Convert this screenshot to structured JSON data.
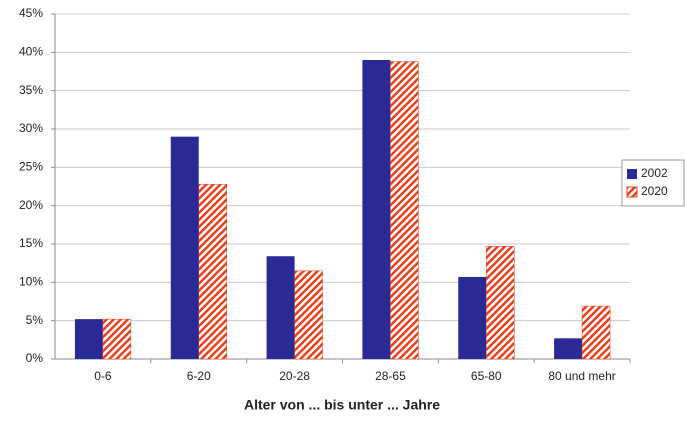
{
  "chart_data": {
    "type": "bar",
    "xlabel": "Alter von ... bis unter ... Jahre",
    "categories": [
      "0-6",
      "6-20",
      "20-28",
      "28-65",
      "65-80",
      "80 und mehr"
    ],
    "series": [
      {
        "name": "2002",
        "color": "#2a2a96",
        "values": [
          5.2,
          29,
          13.4,
          39,
          10.7,
          2.7
        ]
      },
      {
        "name": "2020",
        "color": "#e8401c",
        "hatch": true,
        "values": [
          5.2,
          22.8,
          11.5,
          38.8,
          14.7,
          6.9
        ]
      }
    ],
    "ylim": [
      0,
      45
    ],
    "yticks": [
      {
        "value": 0,
        "label": "0%"
      },
      {
        "value": 5,
        "label": "5%"
      },
      {
        "value": 10,
        "label": "10%"
      },
      {
        "value": 15,
        "label": "15%"
      },
      {
        "value": 20,
        "label": "20%"
      },
      {
        "value": 25,
        "label": "25%"
      },
      {
        "value": 30,
        "label": "30%"
      },
      {
        "value": 35,
        "label": "35%"
      },
      {
        "value": 40,
        "label": "40%"
      },
      {
        "value": 45,
        "label": "45%"
      }
    ],
    "grid": true,
    "legend": "right"
  }
}
